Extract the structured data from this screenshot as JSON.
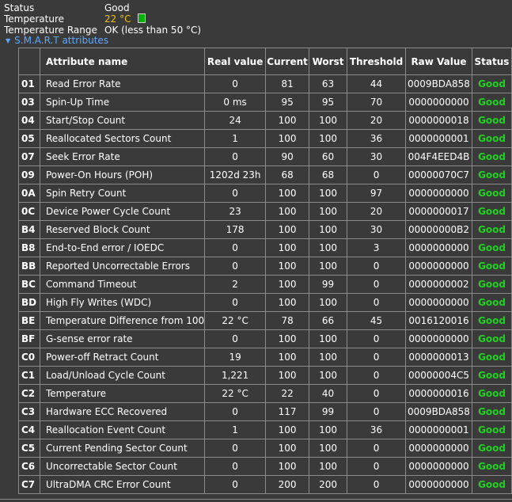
{
  "info": {
    "status_label": "Status",
    "status_value": "Good",
    "temperature_label": "Temperature",
    "temperature_value": "22 °C",
    "temperature_range_label": "Temperature Range",
    "temperature_range_value": "OK (less than 50 °C)"
  },
  "smart_toggle_label": "S.M.A.R.T attributes",
  "colors": {
    "background": "#3a3a3a",
    "good": "#20d020",
    "temperature": "#f0c000",
    "temperature_indicator": "#00b000",
    "link": "#5fa8ff"
  },
  "table": {
    "headers": {
      "id": "",
      "attribute": "Attribute name",
      "real": "Real value",
      "current": "Current",
      "worst": "Worst",
      "threshold": "Threshold",
      "raw": "Raw Value",
      "status": "Status"
    },
    "rows": [
      {
        "id": "01",
        "name": "Read Error Rate",
        "real": "0",
        "current": "81",
        "worst": "63",
        "threshold": "44",
        "raw": "0009BDA858",
        "status": "Good"
      },
      {
        "id": "03",
        "name": "Spin-Up Time",
        "real": "0 ms",
        "current": "95",
        "worst": "95",
        "threshold": "70",
        "raw": "0000000000",
        "status": "Good"
      },
      {
        "id": "04",
        "name": "Start/Stop Count",
        "real": "24",
        "current": "100",
        "worst": "100",
        "threshold": "20",
        "raw": "0000000018",
        "status": "Good"
      },
      {
        "id": "05",
        "name": "Reallocated Sectors Count",
        "real": "1",
        "current": "100",
        "worst": "100",
        "threshold": "36",
        "raw": "0000000001",
        "status": "Good"
      },
      {
        "id": "07",
        "name": "Seek Error Rate",
        "real": "0",
        "current": "90",
        "worst": "60",
        "threshold": "30",
        "raw": "004F4EED4B",
        "status": "Good"
      },
      {
        "id": "09",
        "name": "Power-On Hours (POH)",
        "real": "1202d 23h",
        "current": "68",
        "worst": "68",
        "threshold": "0",
        "raw": "00000070C7",
        "status": "Good"
      },
      {
        "id": "0A",
        "name": "Spin Retry Count",
        "real": "0",
        "current": "100",
        "worst": "100",
        "threshold": "97",
        "raw": "0000000000",
        "status": "Good"
      },
      {
        "id": "0C",
        "name": "Device Power Cycle Count",
        "real": "23",
        "current": "100",
        "worst": "100",
        "threshold": "20",
        "raw": "0000000017",
        "status": "Good"
      },
      {
        "id": "B4",
        "name": "Reserved Block Count",
        "real": "178",
        "current": "100",
        "worst": "100",
        "threshold": "30",
        "raw": "00000000B2",
        "status": "Good"
      },
      {
        "id": "B8",
        "name": "End-to-End error / IOEDC",
        "real": "0",
        "current": "100",
        "worst": "100",
        "threshold": "3",
        "raw": "0000000000",
        "status": "Good"
      },
      {
        "id": "BB",
        "name": "Reported Uncorrectable Errors",
        "real": "0",
        "current": "100",
        "worst": "100",
        "threshold": "0",
        "raw": "0000000000",
        "status": "Good"
      },
      {
        "id": "BC",
        "name": "Command Timeout",
        "real": "2",
        "current": "100",
        "worst": "99",
        "threshold": "0",
        "raw": "0000000002",
        "status": "Good"
      },
      {
        "id": "BD",
        "name": "High Fly Writes (WDC)",
        "real": "0",
        "current": "100",
        "worst": "100",
        "threshold": "0",
        "raw": "0000000000",
        "status": "Good"
      },
      {
        "id": "BE",
        "name": "Temperature Difference from 100",
        "real": "22 °C",
        "current": "78",
        "worst": "66",
        "threshold": "45",
        "raw": "0016120016",
        "status": "Good"
      },
      {
        "id": "BF",
        "name": "G-sense error rate",
        "real": "0",
        "current": "100",
        "worst": "100",
        "threshold": "0",
        "raw": "0000000000",
        "status": "Good"
      },
      {
        "id": "C0",
        "name": "Power-off Retract Count",
        "real": "19",
        "current": "100",
        "worst": "100",
        "threshold": "0",
        "raw": "0000000013",
        "status": "Good"
      },
      {
        "id": "C1",
        "name": "Load/Unload Cycle Count",
        "real": "1,221",
        "current": "100",
        "worst": "100",
        "threshold": "0",
        "raw": "00000004C5",
        "status": "Good"
      },
      {
        "id": "C2",
        "name": "Temperature",
        "real": "22 °C",
        "current": "22",
        "worst": "40",
        "threshold": "0",
        "raw": "0000000016",
        "status": "Good"
      },
      {
        "id": "C3",
        "name": "Hardware ECC Recovered",
        "real": "0",
        "current": "117",
        "worst": "99",
        "threshold": "0",
        "raw": "0009BDA858",
        "status": "Good"
      },
      {
        "id": "C4",
        "name": "Reallocation Event Count",
        "real": "1",
        "current": "100",
        "worst": "100",
        "threshold": "36",
        "raw": "0000000001",
        "status": "Good"
      },
      {
        "id": "C5",
        "name": "Current Pending Sector Count",
        "real": "0",
        "current": "100",
        "worst": "100",
        "threshold": "0",
        "raw": "0000000000",
        "status": "Good"
      },
      {
        "id": "C6",
        "name": "Uncorrectable Sector Count",
        "real": "0",
        "current": "100",
        "worst": "100",
        "threshold": "0",
        "raw": "0000000000",
        "status": "Good"
      },
      {
        "id": "C7",
        "name": "UltraDMA CRC Error Count",
        "real": "0",
        "current": "200",
        "worst": "200",
        "threshold": "0",
        "raw": "0000000000",
        "status": "Good"
      }
    ]
  }
}
